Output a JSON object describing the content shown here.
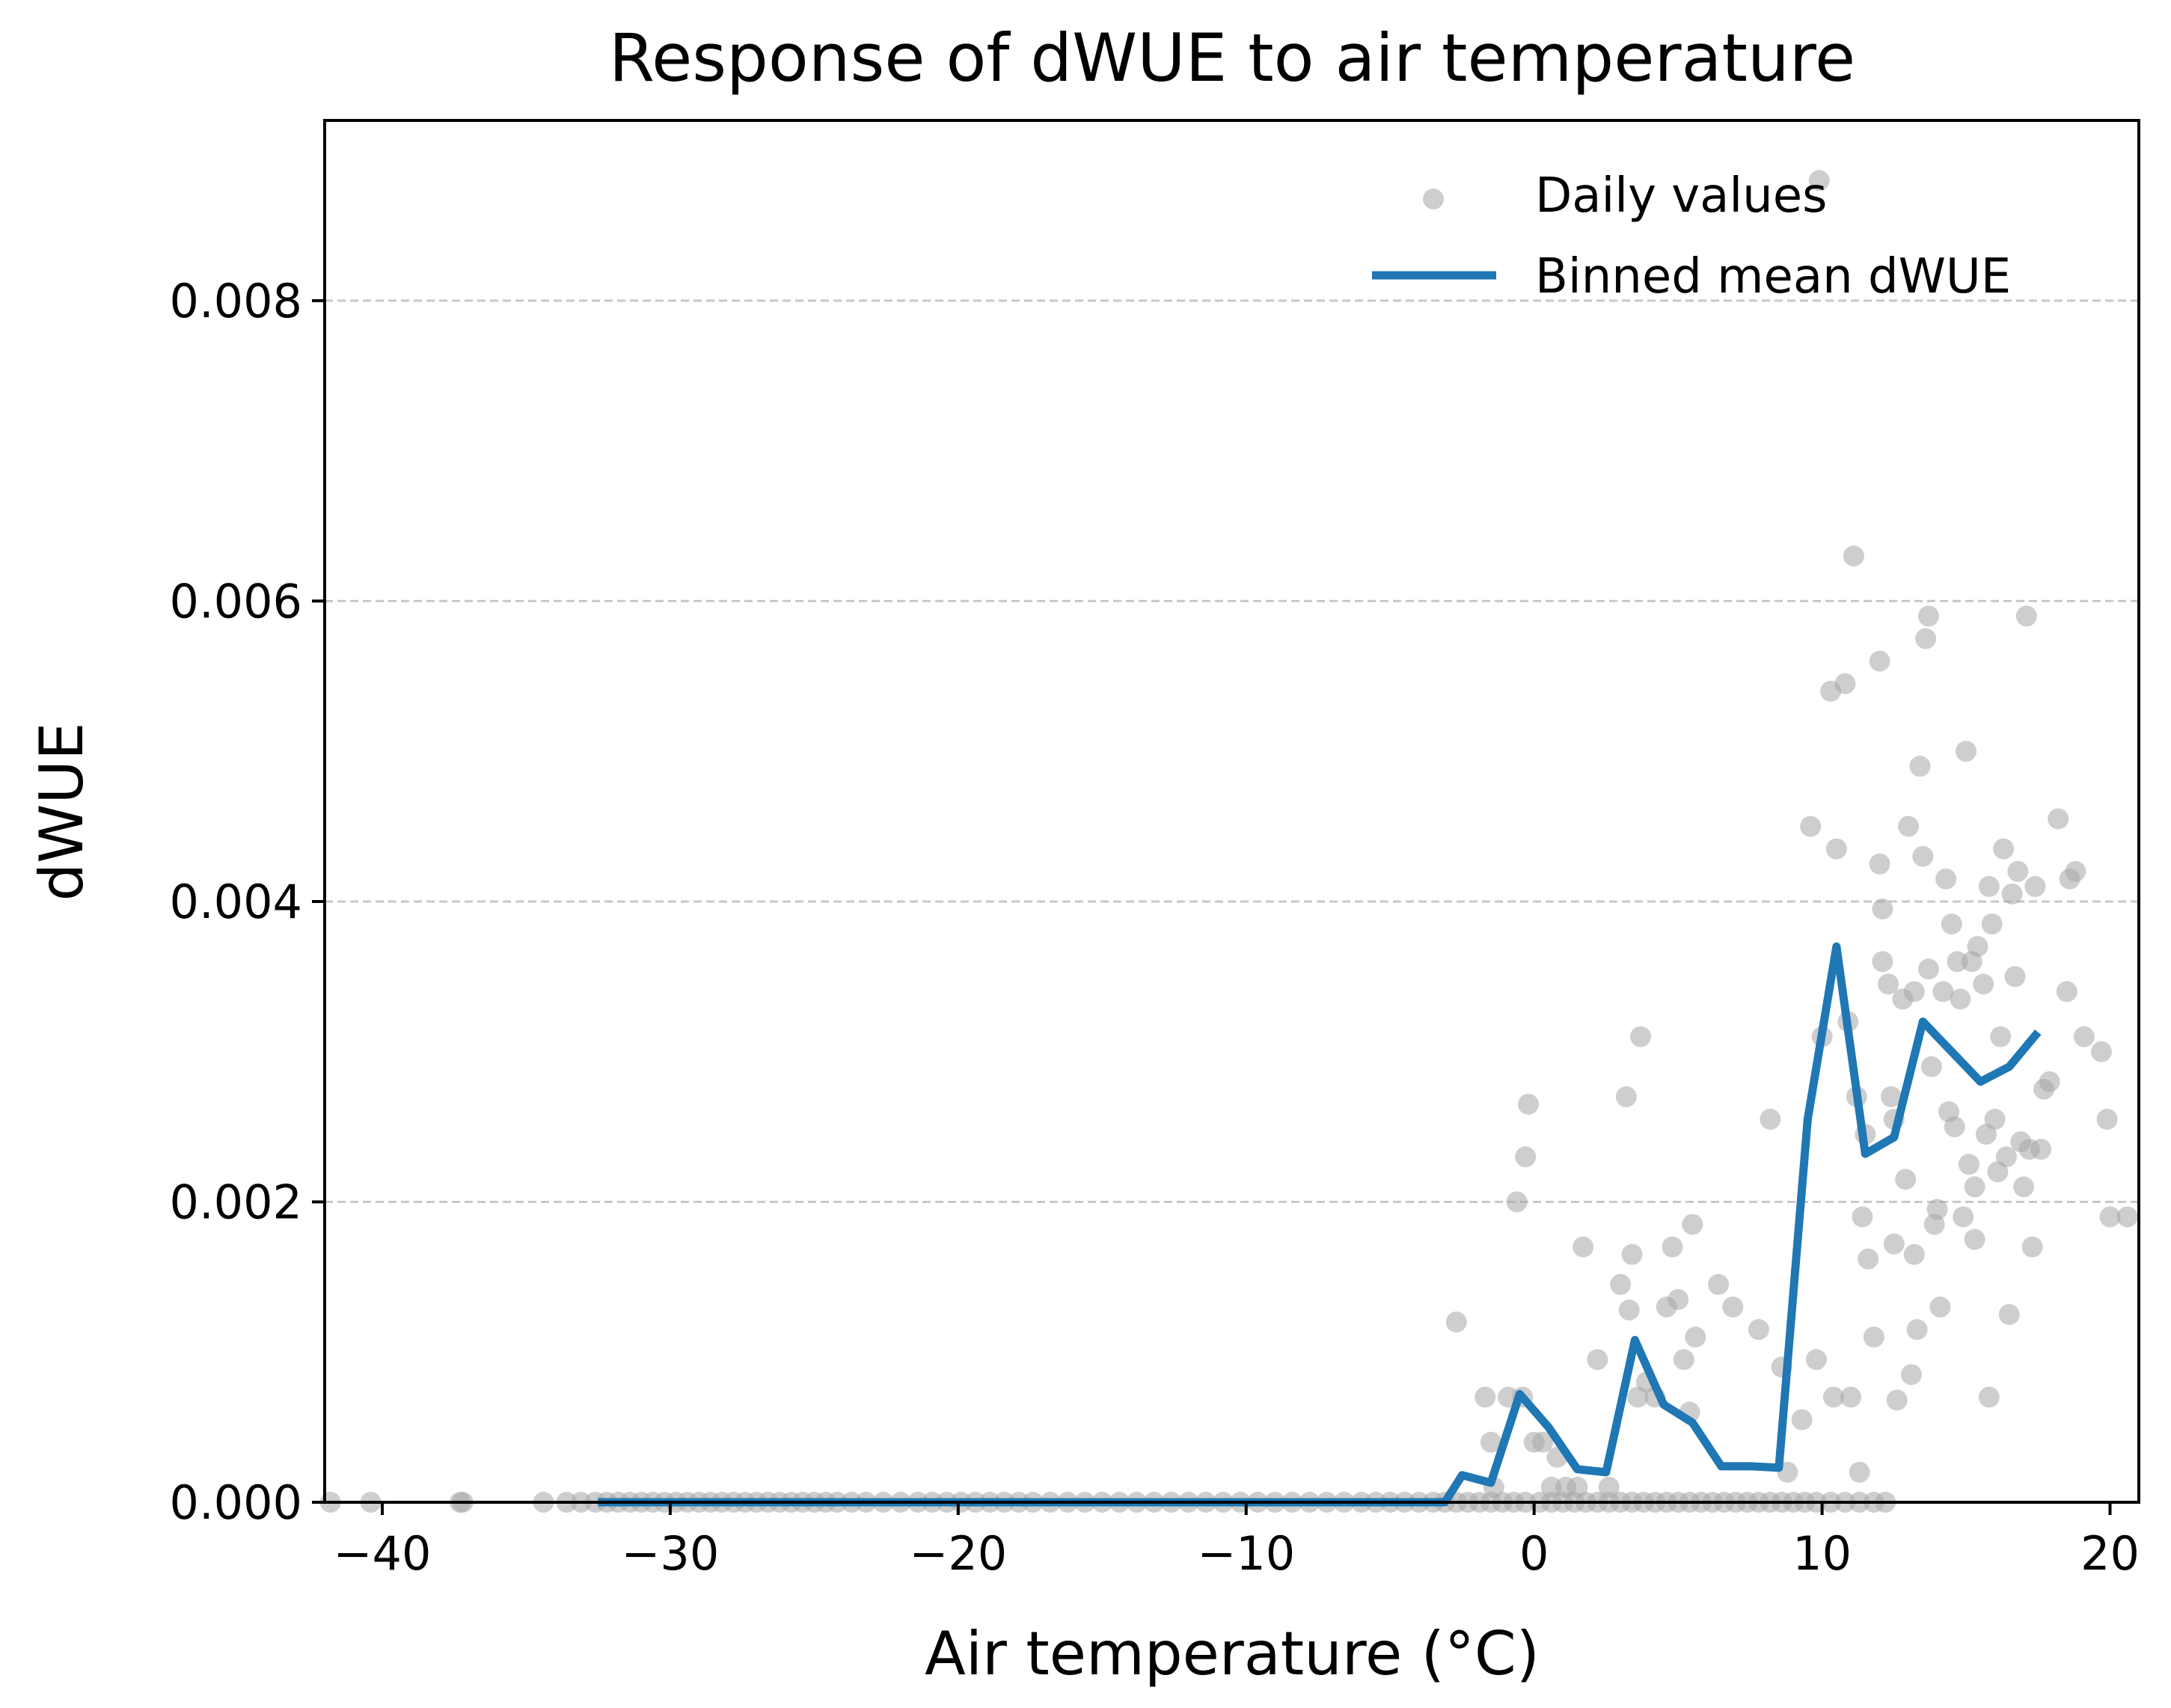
{
  "chart_data": {
    "type": "scatter",
    "title": "Response of dWUE to air temperature",
    "xlabel": "Air temperature (°C)",
    "ylabel": "dWUE",
    "xlim": [
      -42,
      21
    ],
    "ylim": [
      0,
      0.0092
    ],
    "xticks": [
      -40,
      -30,
      -20,
      -10,
      0,
      10,
      20
    ],
    "xtick_labels": [
      "−40",
      "−30",
      "−20",
      "−10",
      "0",
      "10",
      "20"
    ],
    "yticks": [
      0,
      0.002,
      0.004,
      0.006,
      0.008
    ],
    "ytick_labels": [
      "0.000",
      "0.002",
      "0.004",
      "0.006",
      "0.008"
    ],
    "grid": "y-dashed",
    "legend_position": "top-right",
    "colors": {
      "scatter": "#a6a6a6",
      "line": "#1f77b4"
    },
    "series": [
      {
        "name": "Daily values",
        "kind": "scatter",
        "points": [
          [
            -41.8,
            0
          ],
          [
            -40.4,
            0
          ],
          [
            -37.3,
            0
          ],
          [
            -37.2,
            0
          ],
          [
            -34.4,
            0
          ],
          [
            -33.6,
            0
          ],
          [
            -33.1,
            0
          ],
          [
            -32.6,
            0
          ],
          [
            -32.2,
            0
          ],
          [
            -31.8,
            0
          ],
          [
            -31.4,
            0
          ],
          [
            -31.0,
            0
          ],
          [
            -30.6,
            0
          ],
          [
            -30.2,
            0
          ],
          [
            -29.8,
            0
          ],
          [
            -29.4,
            0
          ],
          [
            -29.0,
            0
          ],
          [
            -28.6,
            0
          ],
          [
            -28.2,
            0
          ],
          [
            -27.8,
            0
          ],
          [
            -27.4,
            0
          ],
          [
            -27.0,
            0
          ],
          [
            -26.6,
            0
          ],
          [
            -26.2,
            0
          ],
          [
            -25.8,
            0
          ],
          [
            -25.4,
            0
          ],
          [
            -25.0,
            0
          ],
          [
            -24.6,
            0
          ],
          [
            -24.2,
            0
          ],
          [
            -23.7,
            0
          ],
          [
            -23.2,
            0
          ],
          [
            -22.6,
            0
          ],
          [
            -22.0,
            0
          ],
          [
            -21.4,
            0
          ],
          [
            -20.9,
            0
          ],
          [
            -20.4,
            0
          ],
          [
            -19.9,
            0
          ],
          [
            -19.4,
            0
          ],
          [
            -18.9,
            0
          ],
          [
            -18.4,
            0
          ],
          [
            -17.9,
            0
          ],
          [
            -17.4,
            0
          ],
          [
            -16.8,
            0
          ],
          [
            -16.2,
            0
          ],
          [
            -15.6,
            0
          ],
          [
            -15.0,
            0
          ],
          [
            -14.4,
            0
          ],
          [
            -13.8,
            0
          ],
          [
            -13.2,
            0
          ],
          [
            -12.6,
            0
          ],
          [
            -12.0,
            0
          ],
          [
            -11.4,
            0
          ],
          [
            -10.8,
            0
          ],
          [
            -10.2,
            0
          ],
          [
            -9.6,
            0
          ],
          [
            -9.0,
            0
          ],
          [
            -8.4,
            0
          ],
          [
            -7.8,
            0
          ],
          [
            -7.2,
            0
          ],
          [
            -6.6,
            0
          ],
          [
            -6.0,
            0
          ],
          [
            -5.5,
            0
          ],
          [
            -5.0,
            0
          ],
          [
            -4.5,
            0
          ],
          [
            -4.0,
            0
          ],
          [
            -3.5,
            0
          ],
          [
            -3.1,
            0
          ],
          [
            -2.7,
            0
          ],
          [
            -2.3,
            0
          ],
          [
            -1.9,
            0
          ],
          [
            -1.5,
            0
          ],
          [
            -1.1,
            0
          ],
          [
            -0.7,
            0
          ],
          [
            -0.3,
            0
          ],
          [
            0.2,
            0
          ],
          [
            0.6,
            0
          ],
          [
            1.0,
            0
          ],
          [
            1.4,
            0
          ],
          [
            1.8,
            0
          ],
          [
            2.2,
            0
          ],
          [
            2.6,
            0
          ],
          [
            3.0,
            0
          ],
          [
            3.4,
            0
          ],
          [
            3.8,
            0
          ],
          [
            4.2,
            0
          ],
          [
            4.6,
            0
          ],
          [
            5.0,
            0
          ],
          [
            5.4,
            0
          ],
          [
            5.8,
            0
          ],
          [
            6.2,
            0
          ],
          [
            6.6,
            0
          ],
          [
            7.0,
            0
          ],
          [
            7.4,
            0
          ],
          [
            7.8,
            0
          ],
          [
            8.2,
            0
          ],
          [
            8.6,
            0
          ],
          [
            9.0,
            0
          ],
          [
            9.4,
            0
          ],
          [
            9.8,
            0
          ],
          [
            10.3,
            0
          ],
          [
            10.8,
            0
          ],
          [
            11.3,
            0
          ],
          [
            11.8,
            0
          ],
          [
            12.2,
            0
          ],
          [
            -2.7,
            0.0012
          ],
          [
            -1.7,
            0.0007
          ],
          [
            -1.5,
            0.0004
          ],
          [
            -1.4,
            0.0001
          ],
          [
            -0.9,
            0.0007
          ],
          [
            -0.6,
            0.002
          ],
          [
            -0.4,
            0.0007
          ],
          [
            -0.2,
            0.00265
          ],
          [
            -0.3,
            0.0023
          ],
          [
            0.0,
            0.0004
          ],
          [
            0.3,
            0.0004
          ],
          [
            0.6,
            0.0001
          ],
          [
            0.8,
            0.0003
          ],
          [
            1.1,
            0.0001
          ],
          [
            1.5,
            0.0001
          ],
          [
            1.7,
            0.0017
          ],
          [
            2.2,
            0.00095
          ],
          [
            2.6,
            0.0001
          ],
          [
            3.0,
            0.00145
          ],
          [
            3.2,
            0.0027
          ],
          [
            3.3,
            0.00128
          ],
          [
            3.4,
            0.00165
          ],
          [
            3.6,
            0.0007
          ],
          [
            3.7,
            0.0031
          ],
          [
            3.9,
            0.0008
          ],
          [
            4.2,
            0.0007
          ],
          [
            4.6,
            0.0013
          ],
          [
            4.8,
            0.0017
          ],
          [
            5.0,
            0.00135
          ],
          [
            5.2,
            0.00095
          ],
          [
            5.4,
            0.0006
          ],
          [
            5.5,
            0.00185
          ],
          [
            5.6,
            0.0011
          ],
          [
            6.4,
            0.00145
          ],
          [
            6.9,
            0.0013
          ],
          [
            7.8,
            0.00115
          ],
          [
            8.2,
            0.00255
          ],
          [
            8.6,
            0.0009
          ],
          [
            8.8,
            0.0002
          ],
          [
            9.3,
            0.00055
          ],
          [
            9.6,
            0.0045
          ],
          [
            9.8,
            0.00095
          ],
          [
            9.9,
            0.0088
          ],
          [
            10.0,
            0.0031
          ],
          [
            10.3,
            0.0054
          ],
          [
            10.4,
            0.0007
          ],
          [
            10.5,
            0.00435
          ],
          [
            10.8,
            0.00545
          ],
          [
            10.9,
            0.0032
          ],
          [
            11.0,
            0.0007
          ],
          [
            11.1,
            0.0063
          ],
          [
            11.2,
            0.0027
          ],
          [
            11.3,
            0.0002
          ],
          [
            11.4,
            0.0019
          ],
          [
            11.5,
            0.00245
          ],
          [
            11.6,
            0.00162
          ],
          [
            11.8,
            0.0011
          ],
          [
            12.0,
            0.0056
          ],
          [
            12.0,
            0.00425
          ],
          [
            12.1,
            0.00395
          ],
          [
            12.1,
            0.0036
          ],
          [
            12.3,
            0.00345
          ],
          [
            12.4,
            0.0027
          ],
          [
            12.5,
            0.00255
          ],
          [
            12.5,
            0.00172
          ],
          [
            12.6,
            0.00068
          ],
          [
            12.8,
            0.00335
          ],
          [
            12.9,
            0.00215
          ],
          [
            13.0,
            0.0045
          ],
          [
            13.1,
            0.00085
          ],
          [
            13.2,
            0.0034
          ],
          [
            13.2,
            0.00165
          ],
          [
            13.3,
            0.00115
          ],
          [
            13.4,
            0.0049
          ],
          [
            13.5,
            0.0043
          ],
          [
            13.6,
            0.00575
          ],
          [
            13.7,
            0.0059
          ],
          [
            13.7,
            0.00355
          ],
          [
            13.8,
            0.0029
          ],
          [
            13.9,
            0.00185
          ],
          [
            14.0,
            0.00195
          ],
          [
            14.1,
            0.0013
          ],
          [
            14.2,
            0.0034
          ],
          [
            14.3,
            0.00415
          ],
          [
            14.4,
            0.0026
          ],
          [
            14.5,
            0.00385
          ],
          [
            14.6,
            0.0025
          ],
          [
            14.7,
            0.0036
          ],
          [
            14.8,
            0.00335
          ],
          [
            14.9,
            0.0019
          ],
          [
            15.0,
            0.005
          ],
          [
            15.1,
            0.00225
          ],
          [
            15.2,
            0.0036
          ],
          [
            15.3,
            0.0021
          ],
          [
            15.3,
            0.00175
          ],
          [
            15.4,
            0.0037
          ],
          [
            15.6,
            0.00345
          ],
          [
            15.7,
            0.00245
          ],
          [
            15.8,
            0.0041
          ],
          [
            15.8,
            0.0007
          ],
          [
            15.9,
            0.00385
          ],
          [
            16.0,
            0.00255
          ],
          [
            16.1,
            0.0022
          ],
          [
            16.2,
            0.0031
          ],
          [
            16.3,
            0.00435
          ],
          [
            16.4,
            0.0023
          ],
          [
            16.5,
            0.00125
          ],
          [
            16.6,
            0.00405
          ],
          [
            16.7,
            0.0035
          ],
          [
            16.8,
            0.0042
          ],
          [
            16.9,
            0.0024
          ],
          [
            17.0,
            0.0021
          ],
          [
            17.1,
            0.0059
          ],
          [
            17.2,
            0.00235
          ],
          [
            17.3,
            0.0017
          ],
          [
            17.4,
            0.0041
          ],
          [
            17.6,
            0.00235
          ],
          [
            17.7,
            0.00275
          ],
          [
            17.9,
            0.0028
          ],
          [
            18.2,
            0.00455
          ],
          [
            18.5,
            0.0034
          ],
          [
            18.6,
            0.00415
          ],
          [
            18.8,
            0.0042
          ],
          [
            19.1,
            0.0031
          ],
          [
            19.7,
            0.003
          ],
          [
            19.9,
            0.00255
          ],
          [
            20.0,
            0.0019
          ],
          [
            20.6,
            0.0019
          ]
        ]
      },
      {
        "name": "Binned mean dWUE",
        "kind": "line",
        "points": [
          [
            -32.5,
            0
          ],
          [
            -30,
            0
          ],
          [
            -25,
            0
          ],
          [
            -20,
            0
          ],
          [
            -15,
            0
          ],
          [
            -10,
            0
          ],
          [
            -5,
            0
          ],
          [
            -3.1,
            0
          ],
          [
            -2.5,
            0.00018
          ],
          [
            -1.5,
            0.00013
          ],
          [
            -0.5,
            0.00072
          ],
          [
            0.5,
            0.0005
          ],
          [
            1.5,
            0.00022
          ],
          [
            2.5,
            0.0002
          ],
          [
            3.5,
            0.00108
          ],
          [
            4.5,
            0.00065
          ],
          [
            5.5,
            0.00053
          ],
          [
            6.5,
            0.00024
          ],
          [
            7.5,
            0.00024
          ],
          [
            8.5,
            0.00023
          ],
          [
            9.5,
            0.00255
          ],
          [
            10.5,
            0.0037
          ],
          [
            11.5,
            0.00232
          ],
          [
            12.5,
            0.00243
          ],
          [
            13.5,
            0.0032
          ],
          [
            14.5,
            0.003
          ],
          [
            15.5,
            0.0028
          ],
          [
            16.5,
            0.0029
          ],
          [
            17.5,
            0.00313
          ]
        ]
      }
    ]
  }
}
